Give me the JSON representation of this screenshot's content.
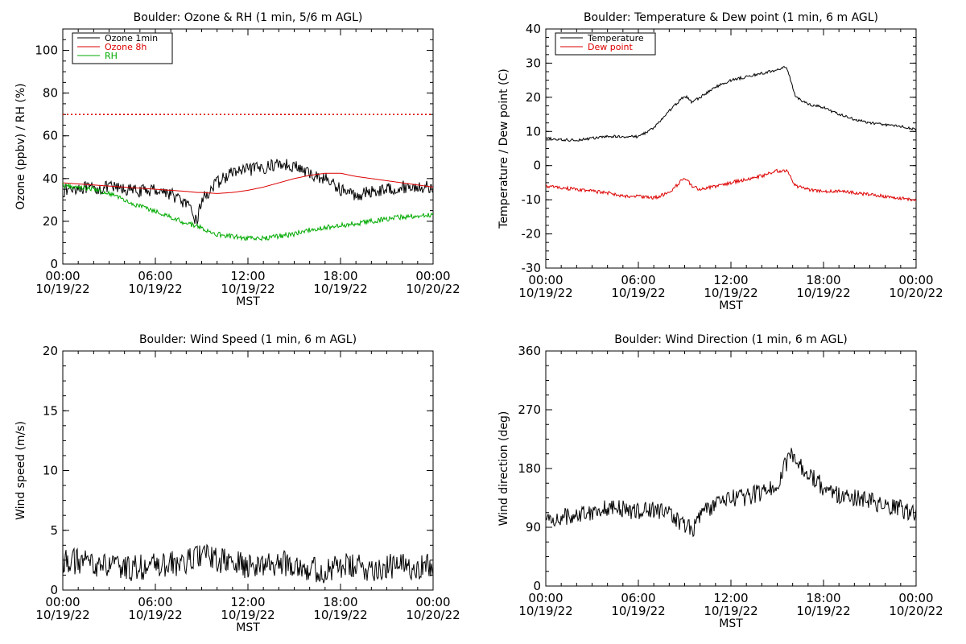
{
  "chart_data": [
    {
      "type": "line",
      "title": "Boulder: Ozone & RH (1 min, 5/6 m AGL)",
      "xlabel": "MST",
      "ylabel": "Ozone (ppbv) / RH (%)",
      "ylim": [
        0,
        110
      ],
      "yticks": [
        0,
        20,
        40,
        60,
        80,
        100
      ],
      "xtick_times": [
        "00:00",
        "06:00",
        "12:00",
        "18:00",
        "00:00"
      ],
      "xtick_dates": [
        "10/19/22",
        "10/19/22",
        "10/19/22",
        "10/19/22",
        "10/20/22"
      ],
      "legend_position": "top-left",
      "reference_line": {
        "y": 70,
        "color": "#dd0000",
        "style": "dotted"
      },
      "x_hours": [
        0,
        1,
        2,
        3,
        4,
        5,
        6,
        7,
        8,
        8.7,
        9,
        10,
        11,
        12,
        13,
        14,
        15,
        16,
        17,
        18,
        19,
        20,
        21,
        22,
        23,
        24
      ],
      "series": [
        {
          "name": "Ozone 1min",
          "color": "#000000",
          "noise": 3,
          "values": [
            34,
            36,
            35,
            36,
            35,
            34,
            35,
            33,
            28,
            20,
            30,
            38,
            43,
            44,
            45,
            47,
            46,
            42,
            40,
            35,
            32,
            34,
            35,
            36,
            36,
            36
          ]
        },
        {
          "name": "Ozone 8h",
          "color": "#dd0000",
          "noise": 0,
          "values": [
            38,
            37.5,
            37,
            36.5,
            36,
            35.5,
            35,
            34.5,
            34,
            33.5,
            33.5,
            33,
            33.5,
            34.5,
            36,
            38,
            40,
            41.5,
            42.5,
            42.5,
            41,
            40,
            39,
            38,
            37,
            36
          ]
        },
        {
          "name": "RH",
          "color": "#00aa00",
          "noise": 1.2,
          "values": [
            37,
            36,
            35,
            33,
            30,
            27,
            25,
            22,
            19,
            18,
            17,
            14,
            13,
            12,
            12,
            13,
            14,
            16,
            17,
            18,
            19,
            20,
            21,
            22,
            22.5,
            23
          ]
        }
      ]
    },
    {
      "type": "line",
      "title": "Boulder: Temperature & Dew point (1 min, 6 m AGL)",
      "xlabel": "MST",
      "ylabel": "Temperature / Dew point (C)",
      "ylim": [
        -30,
        40
      ],
      "yticks": [
        -30,
        -20,
        -10,
        0,
        10,
        20,
        30,
        40
      ],
      "xtick_times": [
        "00:00",
        "06:00",
        "12:00",
        "18:00",
        "00:00"
      ],
      "xtick_dates": [
        "10/19/22",
        "10/19/22",
        "10/19/22",
        "10/19/22",
        "10/20/22"
      ],
      "legend_position": "top-left",
      "x_hours": [
        0,
        1,
        2,
        3,
        4,
        5,
        6,
        7,
        8,
        9,
        9.5,
        10,
        11,
        12,
        13,
        14,
        15,
        15.6,
        16.2,
        17,
        18,
        19,
        20,
        21,
        22,
        23,
        24
      ],
      "series": [
        {
          "name": "Temperature",
          "color": "#000000",
          "noise": 0.4,
          "values": [
            8,
            7.5,
            7.5,
            8,
            8.5,
            8.5,
            8.5,
            11,
            16,
            20.5,
            18.5,
            20,
            23,
            25,
            26,
            27,
            28,
            29,
            20,
            18,
            17,
            15,
            13.5,
            12.5,
            12,
            11.5,
            10.5
          ]
        },
        {
          "name": "Dew point",
          "color": "#dd0000",
          "noise": 0.5,
          "values": [
            -6,
            -6.5,
            -7,
            -7.5,
            -8,
            -9,
            -9,
            -9.5,
            -8,
            -3.5,
            -6,
            -7,
            -6,
            -5,
            -4,
            -3,
            -1.5,
            -1.5,
            -6,
            -7,
            -7.5,
            -7.5,
            -8,
            -8.5,
            -9,
            -9.5,
            -10
          ]
        }
      ]
    },
    {
      "type": "line",
      "title": "Boulder: Wind Speed (1 min, 6 m AGL)",
      "xlabel": "MST",
      "ylabel": "Wind speed (m/s)",
      "ylim": [
        0,
        20
      ],
      "yticks": [
        0,
        5,
        10,
        15,
        20
      ],
      "xtick_times": [
        "00:00",
        "06:00",
        "12:00",
        "18:00",
        "00:00"
      ],
      "xtick_dates": [
        "10/19/22",
        "10/19/22",
        "10/19/22",
        "10/19/22",
        "10/20/22"
      ],
      "x_hours": [
        0,
        2,
        4,
        6,
        8,
        9,
        10,
        12,
        14,
        15,
        16,
        17,
        18,
        20,
        22,
        24
      ],
      "series": [
        {
          "name": "",
          "color": "#000000",
          "noise": 1.1,
          "values": [
            2.5,
            2.2,
            1.8,
            2.0,
            2.3,
            3.0,
            2.5,
            2.0,
            2.2,
            2.3,
            1.8,
            1.5,
            2.0,
            1.8,
            2.0,
            2.0
          ]
        }
      ]
    },
    {
      "type": "line",
      "title": "Boulder: Wind Direction (1 min, 6 m AGL)",
      "xlabel": "MST",
      "ylabel": "Wind direction (deg)",
      "ylim": [
        0,
        360
      ],
      "yticks": [
        0,
        90,
        180,
        270,
        360
      ],
      "xtick_times": [
        "00:00",
        "06:00",
        "12:00",
        "18:00",
        "00:00"
      ],
      "xtick_dates": [
        "10/19/22",
        "10/19/22",
        "10/19/22",
        "10/19/22",
        "10/20/22"
      ],
      "x_hours": [
        0,
        2,
        4,
        6,
        7,
        8,
        9,
        9.5,
        10,
        11,
        12,
        13,
        14,
        15,
        15.8,
        16.5,
        17,
        18,
        19,
        20,
        21,
        22,
        23,
        24
      ],
      "series": [
        {
          "name": "",
          "color": "#000000",
          "noise": 14,
          "values": [
            100,
            110,
            120,
            115,
            118,
            110,
            95,
            85,
            110,
            125,
            135,
            135,
            145,
            155,
            200,
            185,
            175,
            150,
            140,
            135,
            130,
            120,
            118,
            110
          ]
        }
      ]
    }
  ]
}
